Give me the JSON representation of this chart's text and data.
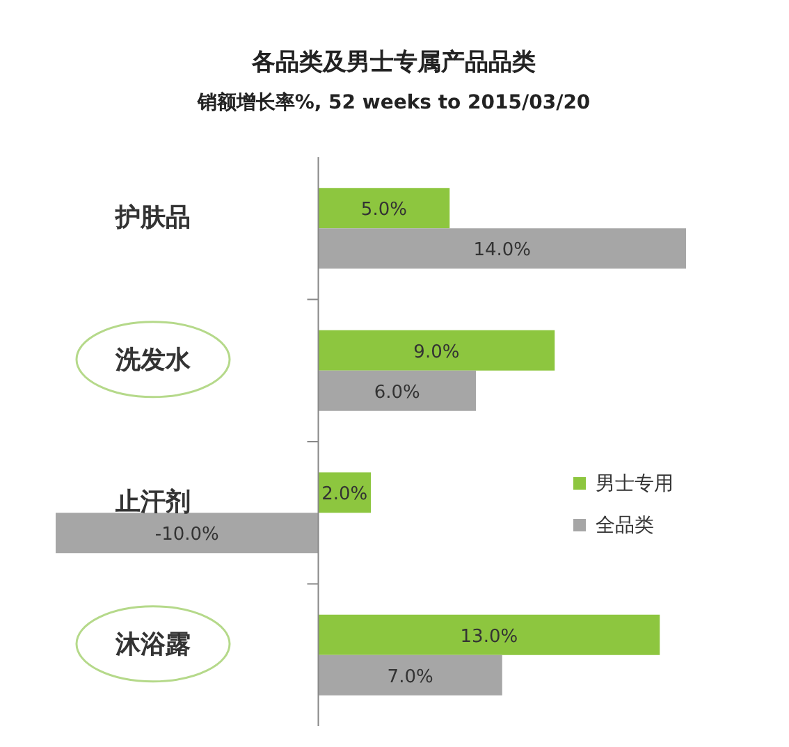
{
  "chart_data": {
    "type": "bar",
    "orientation": "horizontal",
    "title": "各品类及男士专属产品品类",
    "subtitle": "销额增长率%, 52 weeks to 2015/03/20",
    "categories": [
      "护肤品",
      "洗发水",
      "止汗剂",
      "沐浴露"
    ],
    "series": [
      {
        "name": "男士专用",
        "color": "#8dc63f",
        "values": [
          5.0,
          9.0,
          2.0,
          13.0
        ],
        "value_labels": [
          "5.0%",
          "9.0%",
          "2.0%",
          "13.0%"
        ]
      },
      {
        "name": "全品类",
        "color": "#a6a6a6",
        "values": [
          14.0,
          6.0,
          -10.0,
          7.0
        ],
        "value_labels": [
          "14.0%",
          "6.0%",
          "-10.0%",
          "7.0%"
        ]
      }
    ],
    "legend": "right"
  }
}
